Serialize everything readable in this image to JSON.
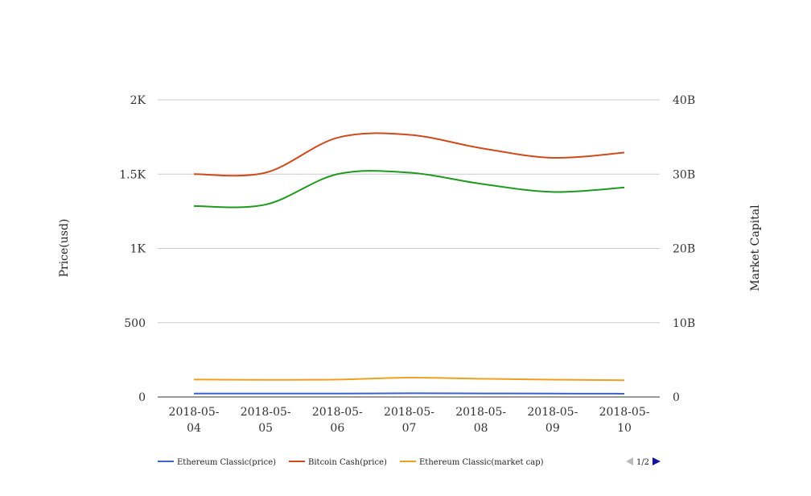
{
  "chart_data": {
    "type": "line",
    "categories": [
      "2018-05-04",
      "2018-05-05",
      "2018-05-06",
      "2018-05-07",
      "2018-05-08",
      "2018-05-09",
      "2018-05-10"
    ],
    "x_tick_labels": [
      [
        "2018-05-",
        "04"
      ],
      [
        "2018-05-",
        "05"
      ],
      [
        "2018-05-",
        "06"
      ],
      [
        "2018-05-",
        "07"
      ],
      [
        "2018-05-",
        "08"
      ],
      [
        "2018-05-",
        "09"
      ],
      [
        "2018-05-",
        "10"
      ]
    ],
    "ylabel": "Price(usd)",
    "y2label": "Market Capital",
    "ylim": [
      0,
      2000
    ],
    "y2lim": [
      0,
      40000000000
    ],
    "y_ticks": [
      0,
      500,
      1000,
      1500,
      2000
    ],
    "y_tick_labels": [
      "0",
      "500",
      "1K",
      "1.5K",
      "2K"
    ],
    "y2_ticks": [
      0,
      10000000000,
      20000000000,
      30000000000,
      40000000000
    ],
    "y2_tick_labels": [
      "0",
      "10B",
      "20B",
      "30B",
      "40B"
    ],
    "grid": true,
    "legend_position": "bottom",
    "series": [
      {
        "name": "Ethereum Classic(price)",
        "axis": "left",
        "color": "#3c64c8",
        "values": [
          23,
          23,
          23,
          25,
          24,
          23,
          22
        ]
      },
      {
        "name": "Bitcoin Cash(price)",
        "axis": "left",
        "color": "#d04a1e",
        "values": [
          1500,
          1510,
          1745,
          1765,
          1675,
          1610,
          1645
        ]
      },
      {
        "name": "Ethereum Classic(market cap)",
        "axis": "right",
        "color": "#f0a020",
        "values": [
          2350000000,
          2300000000,
          2350000000,
          2600000000,
          2450000000,
          2330000000,
          2250000000
        ]
      },
      {
        "name": "",
        "axis": "left",
        "color": "#1f9a1f",
        "in_legend": false,
        "values": [
          1285,
          1295,
          1500,
          1510,
          1435,
          1380,
          1410
        ]
      }
    ]
  },
  "legend": {
    "pager_label": "1/2"
  },
  "colors": {
    "grid": "#cccccc",
    "axis": "#333333",
    "pager_active": "#1414a0",
    "pager_inactive": "#bbbbbb"
  }
}
